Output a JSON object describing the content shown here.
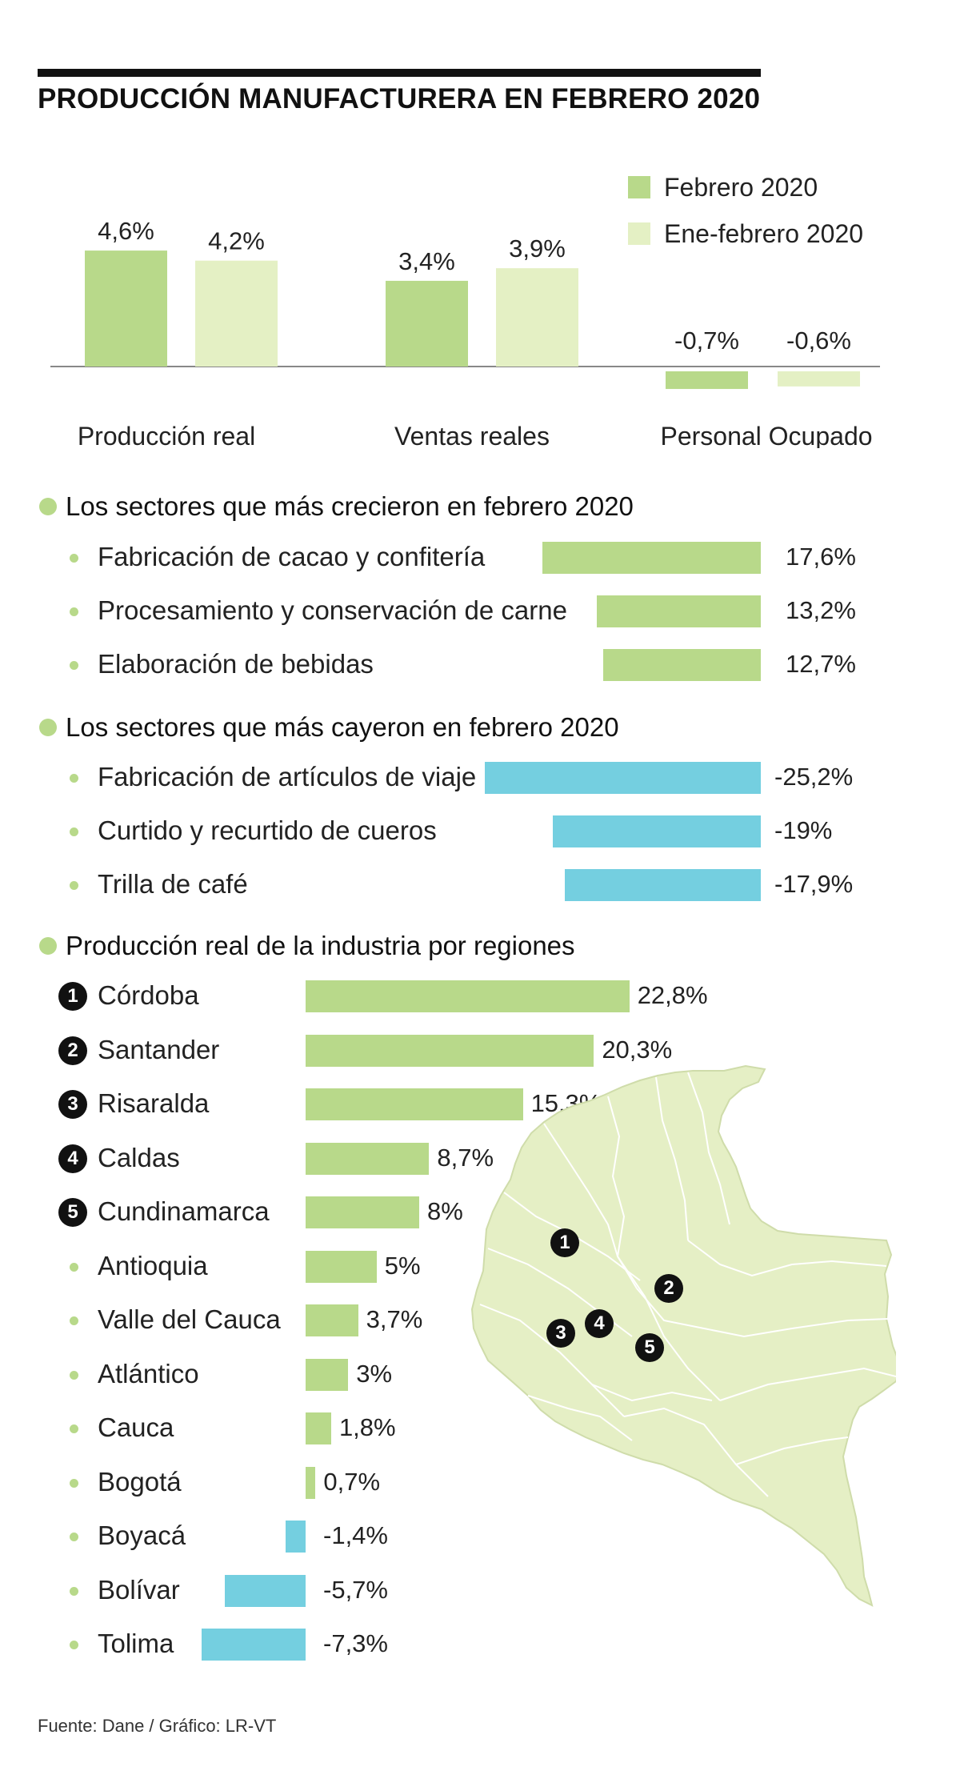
{
  "title": "PRODUCCIÓN MANUFACTURERA EN FEBRERO 2020",
  "colors": {
    "feb": "#b8d98a",
    "enefeb": "#e4f0c4",
    "negative": "#74cfe0",
    "map_fill": "#e5efc5",
    "map_stroke": "#ffffff",
    "dot": "#b8d98a"
  },
  "chart_data": [
    {
      "type": "bar",
      "categories": [
        "Producción real",
        "Ventas reales",
        "Personal Ocupado"
      ],
      "series": [
        {
          "name": "Febrero 2020",
          "values": [
            4.6,
            3.4,
            -0.7
          ],
          "labels": [
            "4,6%",
            "3,4%",
            "-0,7%"
          ]
        },
        {
          "name": "Ene-febrero 2020",
          "values": [
            4.2,
            3.9,
            -0.6
          ],
          "labels": [
            "4,2%",
            "3,9%",
            "-0,6%"
          ]
        }
      ],
      "legend_position": "top-right"
    },
    {
      "type": "bar",
      "title": "Los sectores que más crecieron en febrero 2020",
      "categories": [
        "Fabricación de cacao y confitería",
        "Procesamiento y conservación de carne",
        "Elaboración de bebidas"
      ],
      "values": [
        17.6,
        13.2,
        12.7
      ],
      "labels": [
        "17,6%",
        "13,2%",
        "12,7%"
      ]
    },
    {
      "type": "bar",
      "title": "Los sectores que más cayeron en febrero 2020",
      "categories": [
        "Fabricación de artículos de viaje",
        "Curtido y recurtido de cueros",
        "Trilla de café"
      ],
      "values": [
        -25.2,
        -19,
        -17.9
      ],
      "labels": [
        "-25,2%",
        "-19%",
        "-17,9%"
      ]
    },
    {
      "type": "bar",
      "title": "Producción real de la industria por regiones",
      "categories": [
        "Córdoba",
        "Santander",
        "Risaralda",
        "Caldas",
        "Cundinamarca",
        "Antioquia",
        "Valle del Cauca",
        "Atlántico",
        "Cauca",
        "Bogotá",
        "Boyacá",
        "Bolívar",
        "Tolima"
      ],
      "values": [
        22.8,
        20.3,
        15.3,
        8.7,
        8,
        5,
        3.7,
        3,
        1.8,
        0.7,
        -1.4,
        -5.7,
        -7.3
      ],
      "labels": [
        "22,8%",
        "20,3%",
        "15,3%",
        "8,7%",
        "8%",
        "5%",
        "3,7%",
        "3%",
        "1,8%",
        "0,7%",
        "-1,4%",
        "-5,7%",
        "-7,3%"
      ],
      "ranks": [
        "1",
        "2",
        "3",
        "4",
        "5",
        "",
        "",
        "",
        "",
        "",
        "",
        "",
        ""
      ]
    }
  ],
  "map": {
    "markers": [
      "1",
      "2",
      "3",
      "4",
      "5"
    ]
  },
  "source": "Fuente: Dane  / Gráfico: LR-VT"
}
